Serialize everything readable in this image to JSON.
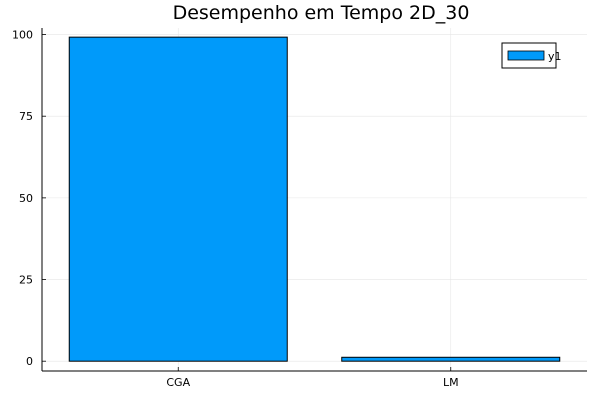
{
  "chart_data": {
    "type": "bar",
    "title": "Desempenho em Tempo 2D_30",
    "xlabel": "",
    "ylabel": "",
    "categories": [
      "CGA",
      "LM"
    ],
    "series": [
      {
        "name": "y1",
        "values": [
          99.2,
          1.2
        ],
        "color": "#009AFA"
      }
    ],
    "ylim": [
      -3,
      102
    ],
    "yticks": [
      0,
      25,
      50,
      75,
      100
    ],
    "grid": true,
    "legend_position": "top-right"
  }
}
